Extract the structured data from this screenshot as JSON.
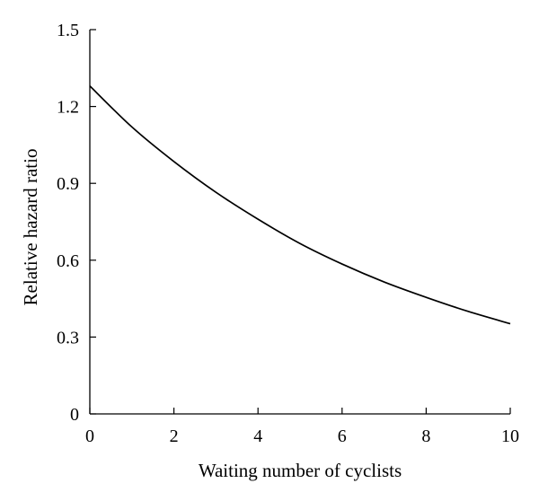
{
  "chart_data": {
    "type": "line",
    "xlabel": "Waiting number of cyclists",
    "ylabel": "Relative hazard ratio",
    "xlim": [
      0,
      10
    ],
    "ylim": [
      0,
      1.5
    ],
    "xticks": [
      "0",
      "2",
      "4",
      "6",
      "8",
      "10"
    ],
    "yticks": [
      "0",
      "0.3",
      "0.6",
      "0.9",
      "1.2",
      "1.5"
    ],
    "grid": false,
    "legend": "none",
    "series": [
      {
        "color": "#000000",
        "x": [
          0,
          1,
          2,
          3,
          4,
          5,
          6,
          7,
          8,
          9,
          10
        ],
        "y": [
          1.28,
          1.12,
          0.985,
          0.865,
          0.76,
          0.665,
          0.585,
          0.515,
          0.455,
          0.4,
          0.352
        ]
      }
    ]
  }
}
